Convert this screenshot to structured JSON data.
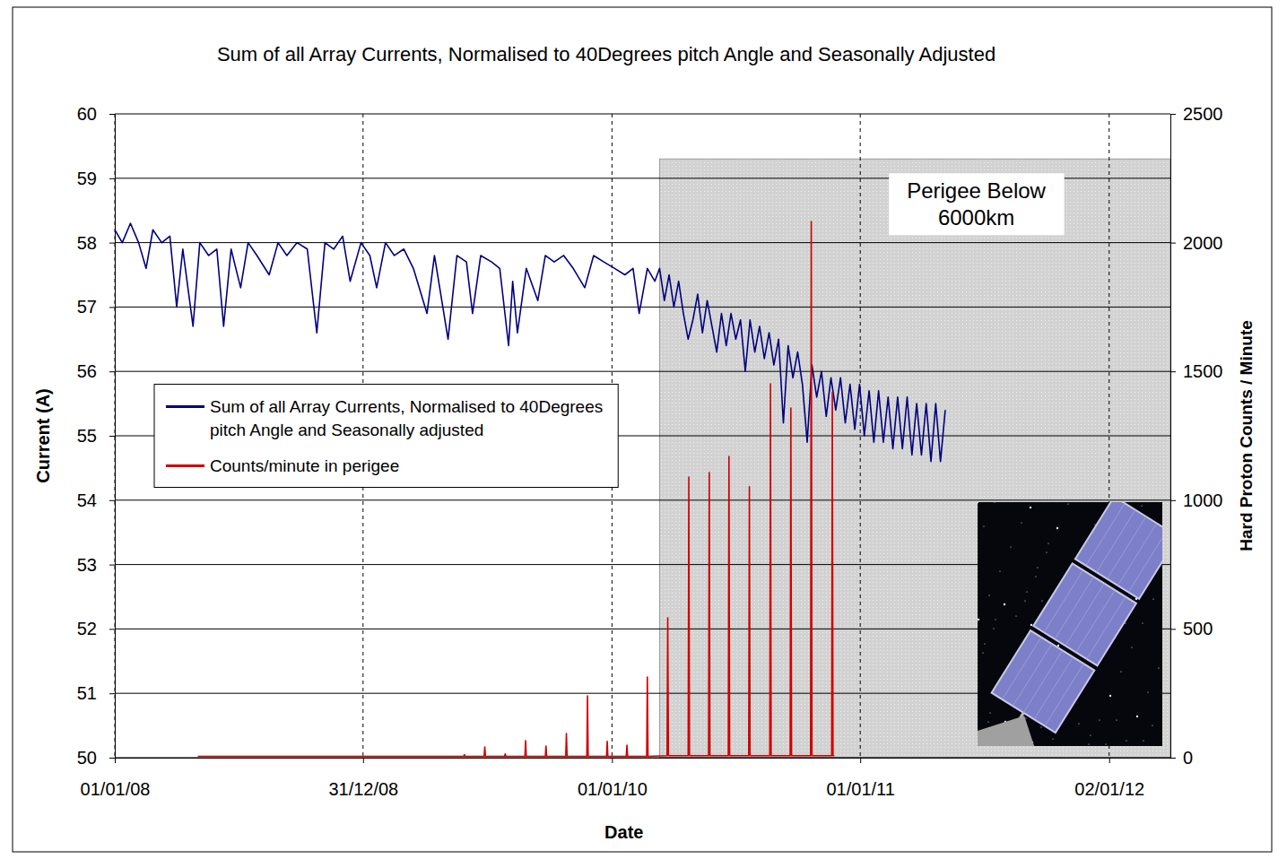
{
  "chart_data": {
    "type": "line",
    "title": "Sum of all Array Currents, Normalised to 40Degrees pitch Angle and Seasonally Adjusted",
    "x_label": "Date",
    "y_label": "Current (A)",
    "y2_label": "Hard Proton Counts / Minute",
    "xlim": [
      "2008-01-01",
      "2012-04-01"
    ],
    "xticks": [
      {
        "value": "2008-01-01",
        "label": "01/01/08"
      },
      {
        "value": "2008-12-31",
        "label": "31/12/08"
      },
      {
        "value": "2010-01-01",
        "label": "01/01/10"
      },
      {
        "value": "2011-01-01",
        "label": "01/01/11"
      },
      {
        "value": "2012-01-02",
        "label": "02/01/12"
      }
    ],
    "ylim": [
      50,
      60
    ],
    "yticks": [
      50,
      51,
      52,
      53,
      54,
      55,
      56,
      57,
      58,
      59,
      60
    ],
    "y2lim": [
      0,
      2500
    ],
    "y2ticks": [
      0,
      500,
      1000,
      1500,
      2000,
      2500
    ],
    "grid": true,
    "legend": "center left",
    "annotation": {
      "text": "Perigee Below 6000km",
      "x": [
        "2010-03-12",
        "2012-04-01"
      ],
      "y": [
        50,
        59.3
      ]
    },
    "series": [
      {
        "name": "Sum of all Array Currents, Normalised to 40Degrees pitch Angle and Seasonally adjusted",
        "color": "#000080",
        "x": [
          "2008-01-01",
          "2008-01-12",
          "2008-01-24",
          "2008-02-05",
          "2008-02-16",
          "2008-02-26",
          "2008-03-10",
          "2008-03-22",
          "2008-04-01",
          "2008-04-10",
          "2008-04-25",
          "2008-05-05",
          "2008-05-18",
          "2008-05-30",
          "2008-06-09",
          "2008-06-20",
          "2008-07-04",
          "2008-07-15",
          "2008-07-28",
          "2008-08-15",
          "2008-08-28",
          "2008-09-10",
          "2008-09-25",
          "2008-10-10",
          "2008-10-24",
          "2008-11-05",
          "2008-11-18",
          "2008-12-01",
          "2008-12-12",
          "2008-12-28",
          "2009-01-10",
          "2009-01-20",
          "2009-02-02",
          "2009-02-15",
          "2009-03-01",
          "2009-03-15",
          "2009-04-04",
          "2009-04-15",
          "2009-05-05",
          "2009-05-18",
          "2009-06-01",
          "2009-06-10",
          "2009-06-22",
          "2009-07-08",
          "2009-07-20",
          "2009-08-02",
          "2009-08-08",
          "2009-08-15",
          "2009-08-28",
          "2009-09-14",
          "2009-09-25",
          "2009-10-08",
          "2009-10-22",
          "2009-11-05",
          "2009-11-22",
          "2009-12-05",
          "2009-12-20",
          "2010-01-05",
          "2010-01-20",
          "2010-02-01",
          "2010-02-10",
          "2010-02-22",
          "2010-03-05",
          "2010-03-12",
          "2010-03-19",
          "2010-03-26",
          "2010-04-02",
          "2010-04-09",
          "2010-04-16",
          "2010-04-23",
          "2010-04-30",
          "2010-05-07",
          "2010-05-14",
          "2010-05-21",
          "2010-05-28",
          "2010-06-04",
          "2010-06-11",
          "2010-06-18",
          "2010-06-25",
          "2010-07-02",
          "2010-07-09",
          "2010-07-16",
          "2010-07-23",
          "2010-07-30",
          "2010-08-06",
          "2010-08-13",
          "2010-08-20",
          "2010-08-27",
          "2010-09-03",
          "2010-09-10",
          "2010-09-17",
          "2010-09-24",
          "2010-10-01",
          "2010-10-08",
          "2010-10-15",
          "2010-10-22",
          "2010-10-29",
          "2010-11-05",
          "2010-11-12",
          "2010-11-19",
          "2010-11-26",
          "2010-12-03",
          "2010-12-10",
          "2010-12-17",
          "2010-12-24",
          "2010-12-31",
          "2011-01-07",
          "2011-01-14",
          "2011-01-21",
          "2011-01-28",
          "2011-02-04",
          "2011-02-11",
          "2011-02-18",
          "2011-02-25",
          "2011-03-04",
          "2011-03-11",
          "2011-03-18",
          "2011-03-25",
          "2011-04-01",
          "2011-04-08",
          "2011-04-15",
          "2011-04-22",
          "2011-04-29",
          "2011-05-06"
        ],
        "values": [
          58.2,
          58.0,
          58.3,
          58.0,
          57.6,
          58.2,
          58.0,
          58.1,
          57.0,
          57.9,
          56.7,
          58.0,
          57.8,
          57.9,
          56.7,
          57.9,
          57.3,
          58.0,
          57.8,
          57.5,
          58.0,
          57.8,
          58.0,
          57.9,
          56.6,
          58.0,
          57.9,
          58.1,
          57.4,
          58.0,
          57.8,
          57.3,
          58.0,
          57.8,
          57.9,
          57.6,
          56.9,
          57.8,
          56.5,
          57.8,
          57.7,
          56.9,
          57.8,
          57.7,
          57.6,
          56.4,
          57.4,
          56.6,
          57.6,
          57.1,
          57.8,
          57.7,
          57.8,
          57.6,
          57.3,
          57.8,
          57.7,
          57.6,
          57.5,
          57.6,
          56.9,
          57.6,
          57.4,
          57.6,
          57.1,
          57.5,
          57.0,
          57.4,
          56.9,
          56.5,
          56.8,
          57.2,
          56.6,
          57.1,
          56.7,
          56.3,
          56.9,
          56.4,
          56.9,
          56.5,
          56.8,
          56.0,
          56.8,
          56.3,
          56.7,
          56.2,
          56.6,
          56.1,
          56.5,
          55.2,
          56.4,
          55.9,
          56.3,
          55.8,
          54.9,
          56.1,
          55.6,
          56.0,
          55.3,
          55.9,
          55.4,
          55.9,
          55.2,
          55.8,
          55.1,
          55.8,
          55.0,
          55.7,
          54.9,
          55.7,
          54.9,
          55.6,
          54.8,
          55.6,
          54.8,
          55.6,
          54.7,
          55.5,
          54.7,
          55.5,
          54.6,
          55.5,
          54.6,
          55.4
        ]
      },
      {
        "name": "Counts/minute in perigee",
        "color": "#d00000",
        "axis": "y2",
        "x": [
          "2008-05-02",
          "2008-09-01",
          "2009-01-01",
          "2009-05-28",
          "2009-05-29",
          "2009-05-30",
          "2009-06-27",
          "2009-06-28",
          "2009-06-29",
          "2009-07-27",
          "2009-07-28",
          "2009-07-29",
          "2009-08-26",
          "2009-08-27",
          "2009-08-28",
          "2009-09-25",
          "2009-09-26",
          "2009-09-27",
          "2009-10-25",
          "2009-10-26",
          "2009-10-27",
          "2009-11-25",
          "2009-11-26",
          "2009-11-27",
          "2009-12-24",
          "2009-12-25",
          "2009-12-26",
          "2010-01-22",
          "2010-01-23",
          "2010-01-24",
          "2010-02-21",
          "2010-02-22",
          "2010-02-23",
          "2010-03-23",
          "2010-03-24",
          "2010-03-25",
          "2010-04-23",
          "2010-04-24",
          "2010-04-25",
          "2010-05-23",
          "2010-05-24",
          "2010-05-25",
          "2010-06-21",
          "2010-06-22",
          "2010-06-23",
          "2010-07-21",
          "2010-07-22",
          "2010-07-23",
          "2010-08-21",
          "2010-08-22",
          "2010-08-23",
          "2010-09-20",
          "2010-09-21",
          "2010-09-22",
          "2010-10-20",
          "2010-10-21",
          "2010-10-22",
          "2010-11-20",
          "2010-11-21",
          "2010-11-22",
          "2010-11-24"
        ],
        "values": [
          5,
          5,
          5,
          5,
          12,
          5,
          5,
          42,
          5,
          5,
          15,
          5,
          5,
          66,
          5,
          5,
          45,
          5,
          5,
          94,
          5,
          5,
          240,
          5,
          5,
          63,
          5,
          5,
          49,
          5,
          5,
          313,
          5,
          8,
          543,
          8,
          8,
          1090,
          8,
          8,
          1107,
          8,
          8,
          1170,
          8,
          8,
          1052,
          8,
          8,
          1452,
          8,
          8,
          1358,
          8,
          8,
          2082,
          8,
          8,
          1420,
          8,
          8
        ]
      }
    ]
  }
}
